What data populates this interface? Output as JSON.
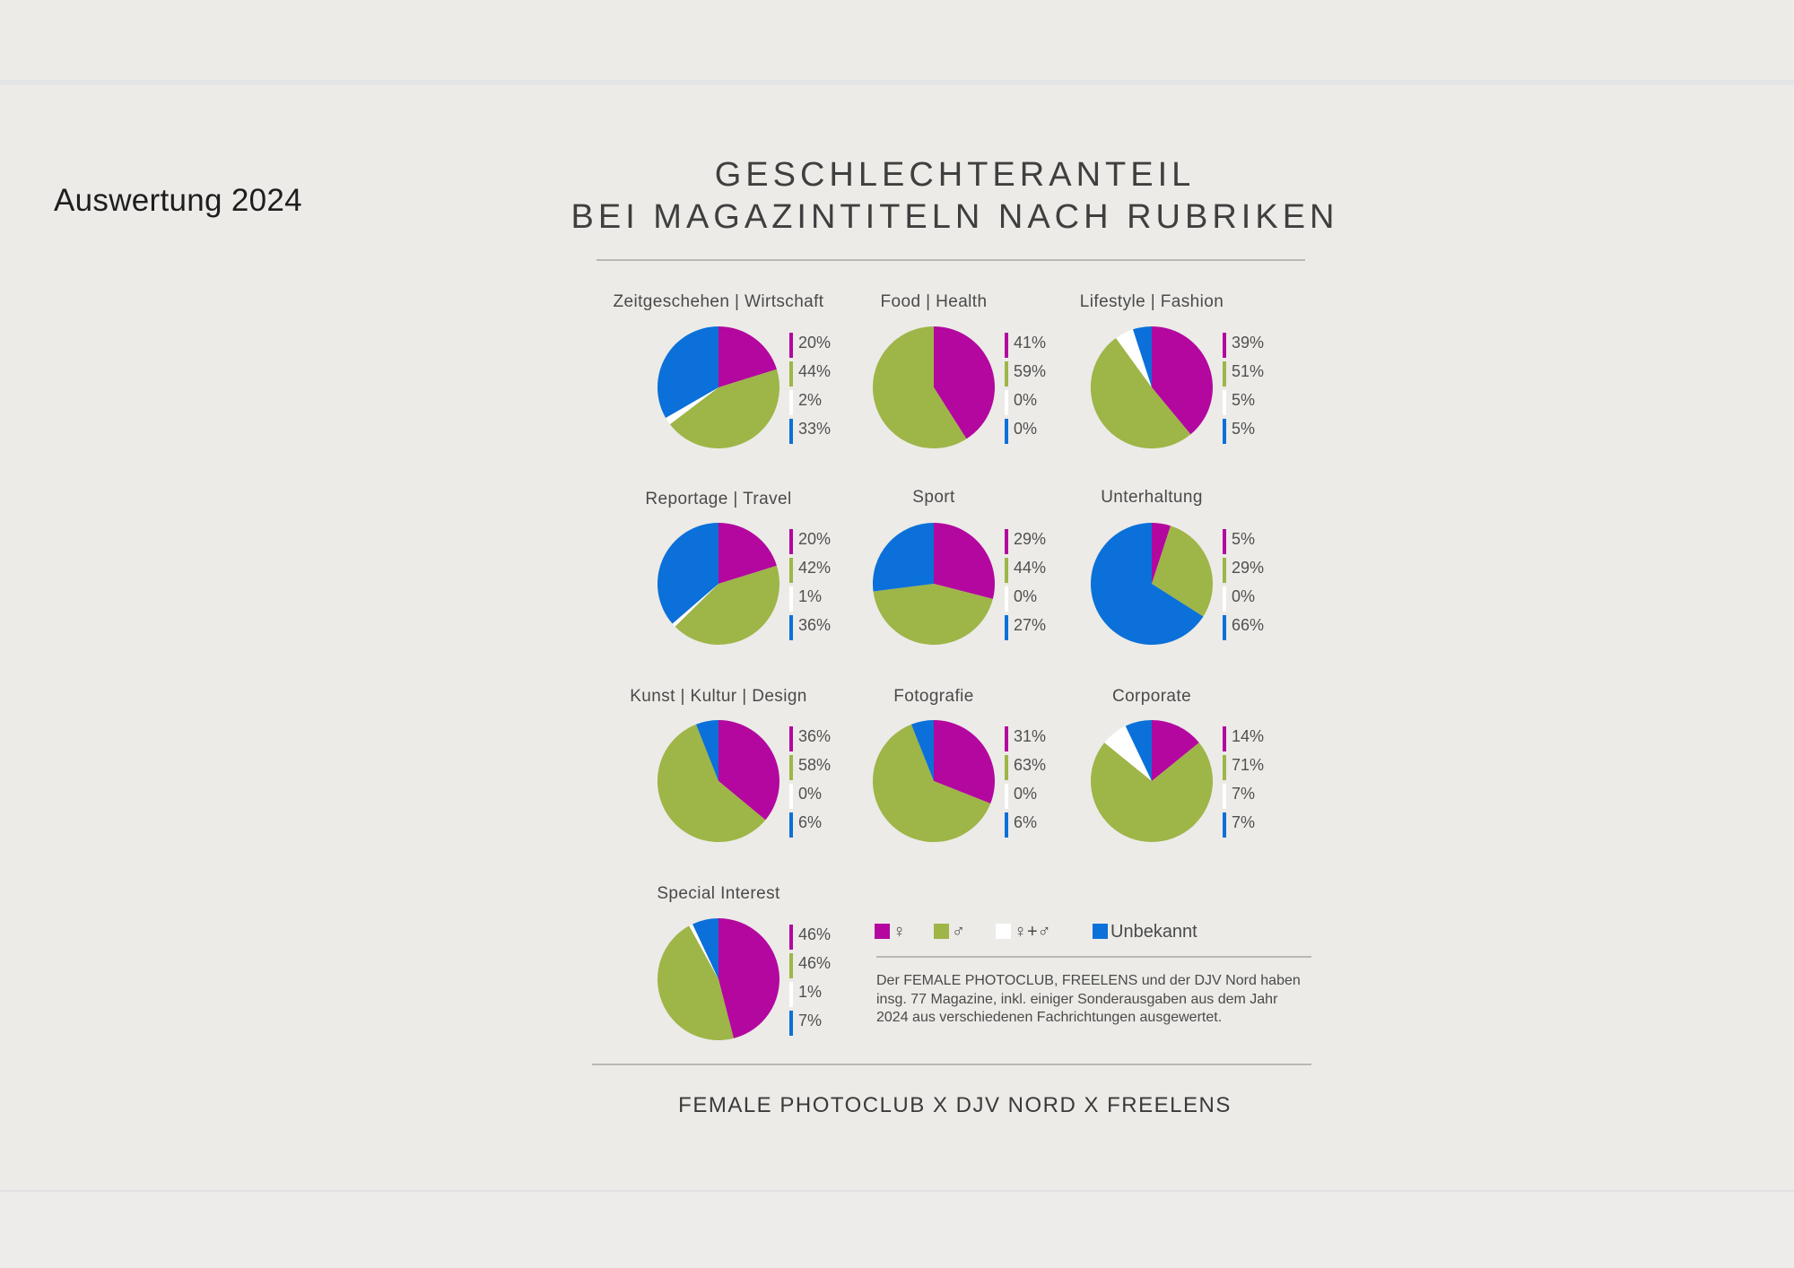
{
  "page_title": "Auswertung 2024",
  "title_lines": [
    "GESCHLECHTERANTEIL",
    "BEI MAGAZINTITELN NACH RUBRIKEN"
  ],
  "colors": {
    "female": "#b3079f",
    "male": "#9eb548",
    "both": "#ffffff",
    "unknown": "#0b70d9"
  },
  "legend": {
    "female": "♀",
    "male": "♂",
    "both": "♀+♂",
    "unknown": "Unbekannt"
  },
  "note": "Der FEMALE PHOTOCLUB, FREELENS und der DJV Nord haben insg. 77 Magazine, inkl. einiger Sonderausgaben aus dem Jahr 2024 aus verschiedenen Fachrichtungen ausgewertet.",
  "footer": "FEMALE PHOTOCLUB X DJV NORD X FREELENS",
  "chart_data": [
    {
      "type": "pie",
      "title": "Zeitgeschehen | Wirtschaft",
      "categories": [
        "♀",
        "♂",
        "♀+♂",
        "Unbekannt"
      ],
      "values": [
        20,
        44,
        2,
        33
      ],
      "labels": [
        "20%",
        "44%",
        "2%",
        "33%"
      ]
    },
    {
      "type": "pie",
      "title": "Food | Health",
      "categories": [
        "♀",
        "♂",
        "♀+♂",
        "Unbekannt"
      ],
      "values": [
        41,
        59,
        0,
        0
      ],
      "labels": [
        "41%",
        "59%",
        "0%",
        "0%"
      ]
    },
    {
      "type": "pie",
      "title": "Lifestyle | Fashion",
      "categories": [
        "♀",
        "♂",
        "♀+♂",
        "Unbekannt"
      ],
      "values": [
        39,
        51,
        5,
        5
      ],
      "labels": [
        "39%",
        "51%",
        "5%",
        "5%"
      ]
    },
    {
      "type": "pie",
      "title": "Reportage | Travel",
      "categories": [
        "♀",
        "♂",
        "♀+♂",
        "Unbekannt"
      ],
      "values": [
        20,
        42,
        1,
        36
      ],
      "labels": [
        "20%",
        "42%",
        "1%",
        "36%"
      ]
    },
    {
      "type": "pie",
      "title": "Sport",
      "categories": [
        "♀",
        "♂",
        "♀+♂",
        "Unbekannt"
      ],
      "values": [
        29,
        44,
        0,
        27
      ],
      "labels": [
        "29%",
        "44%",
        "0%",
        "27%"
      ]
    },
    {
      "type": "pie",
      "title": "Unterhaltung",
      "categories": [
        "♀",
        "♂",
        "♀+♂",
        "Unbekannt"
      ],
      "values": [
        5,
        29,
        0,
        66
      ],
      "labels": [
        "5%",
        "29%",
        "0%",
        "66%"
      ]
    },
    {
      "type": "pie",
      "title": "Kunst | Kultur | Design",
      "categories": [
        "♀",
        "♂",
        "♀+♂",
        "Unbekannt"
      ],
      "values": [
        36,
        58,
        0,
        6
      ],
      "labels": [
        "36%",
        "58%",
        "0%",
        "6%"
      ]
    },
    {
      "type": "pie",
      "title": "Fotografie",
      "categories": [
        "♀",
        "♂",
        "♀+♂",
        "Unbekannt"
      ],
      "values": [
        31,
        63,
        0,
        6
      ],
      "labels": [
        "31%",
        "63%",
        "0%",
        "6%"
      ]
    },
    {
      "type": "pie",
      "title": "Corporate",
      "categories": [
        "♀",
        "♂",
        "♀+♂",
        "Unbekannt"
      ],
      "values": [
        14,
        71,
        7,
        7
      ],
      "labels": [
        "14%",
        "71%",
        "7%",
        "7%"
      ]
    },
    {
      "type": "pie",
      "title": "Special Interest",
      "categories": [
        "♀",
        "♂",
        "♀+♂",
        "Unbekannt"
      ],
      "values": [
        46,
        46,
        1,
        7
      ],
      "labels": [
        "46%",
        "46%",
        "1%",
        "7%"
      ]
    }
  ]
}
